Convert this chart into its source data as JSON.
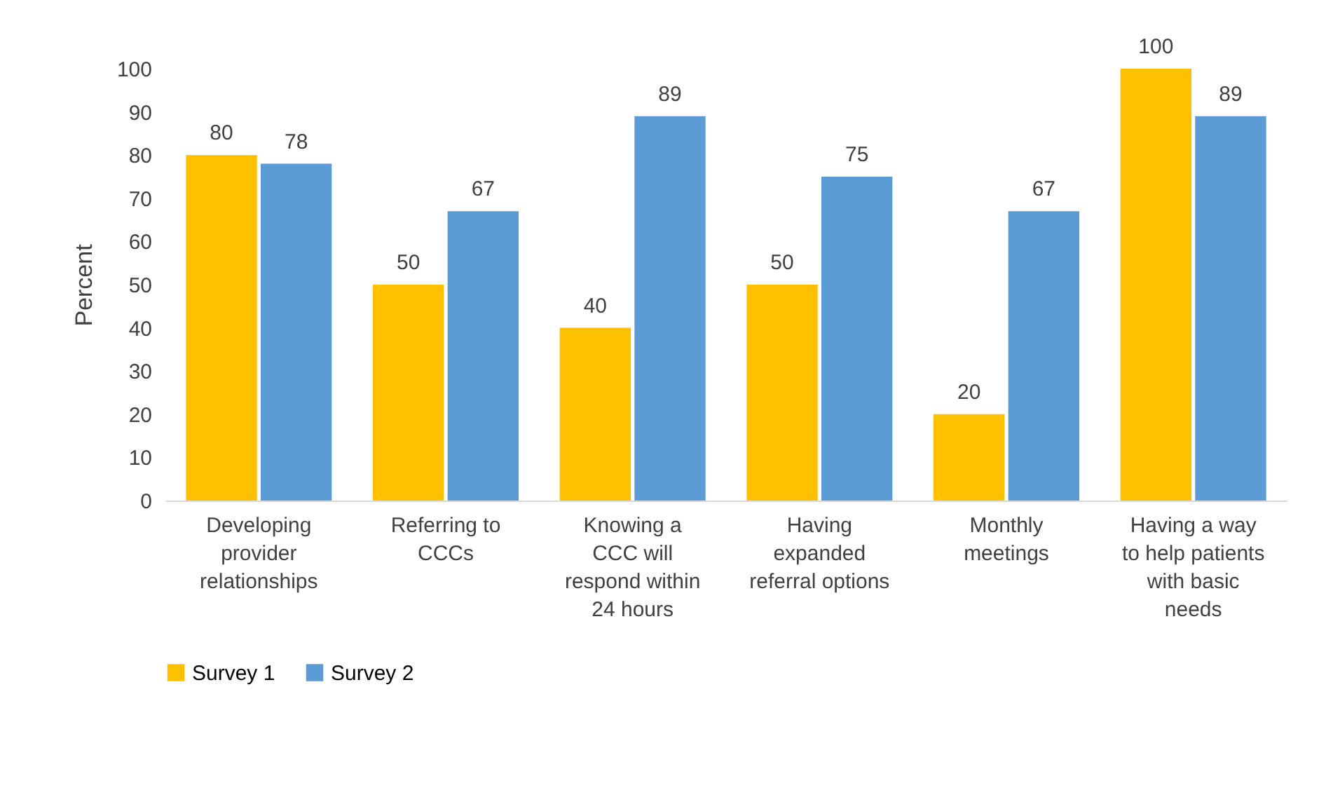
{
  "chart_data": {
    "type": "bar",
    "ylabel": "Percent",
    "categories": [
      "Developing provider relationships",
      "Referring to CCCs",
      "Knowing a CCC will respond within 24 hours",
      "Having expanded referral options",
      "Monthly meetings",
      "Having a way to help patients with basic needs"
    ],
    "series": [
      {
        "name": "Survey 1",
        "color": "#ffc000",
        "values": [
          80,
          50,
          40,
          50,
          20,
          100
        ]
      },
      {
        "name": "Survey 2",
        "color": "#5b9bd5",
        "values": [
          78,
          67,
          89,
          75,
          67,
          89
        ]
      }
    ],
    "ylim": [
      0,
      100
    ],
    "yticks": [
      0,
      10,
      20,
      30,
      40,
      50,
      60,
      70,
      80,
      90,
      100
    ],
    "data_labels": true,
    "legend": "bottom",
    "grid": false
  }
}
